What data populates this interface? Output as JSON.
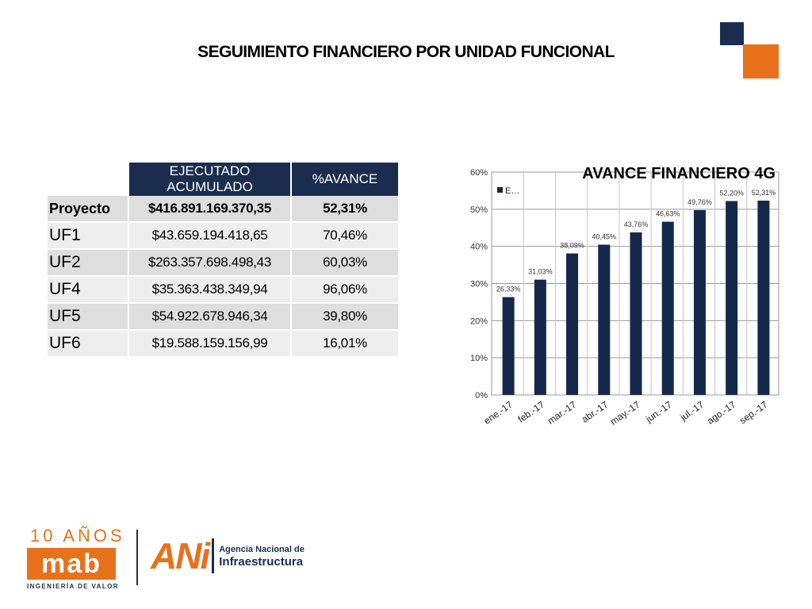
{
  "slide": {
    "title": "SEGUIMIENTO FINANCIERO POR UNIDAD  FUNCIONAL"
  },
  "colors": {
    "navy": "#1b2d4f",
    "orange": "#e8711c",
    "bar": "#14284b"
  },
  "table": {
    "headers": [
      "",
      "EJECUTADO ACUMULADO",
      "%AVANCE"
    ],
    "rows": [
      [
        "Proyecto",
        "$416.891.169.370,35",
        "52,31%"
      ],
      [
        "UF1",
        "$43.659.194.418,65",
        "70,46%"
      ],
      [
        "UF2",
        "$263.357.698.498,43",
        "60,03%"
      ],
      [
        "UF4",
        "$35.363.438.349,94",
        "96,06%"
      ],
      [
        "UF5",
        "$54.922.678.946,34",
        "39,80%"
      ],
      [
        "UF6",
        "$19.588.159.156,99",
        "16,01%"
      ]
    ]
  },
  "chart_data": {
    "type": "bar",
    "title": "AVANCE FINANCIERO 4G",
    "categories": [
      "ene.-17",
      "feb.-17",
      "mar.-17",
      "abr.-17",
      "may.-17",
      "jun.-17",
      "jul.-17",
      "ago.-17",
      "sep.-17"
    ],
    "series": [
      {
        "name": "E…",
        "values": [
          26.33,
          31.03,
          38.09,
          40.45,
          43.76,
          46.63,
          49.76,
          52.2,
          52.31
        ],
        "labels": [
          "26,33%",
          "31,03%",
          "38,09%",
          "40,45%",
          "43,76%",
          "46,63%",
          "49,76%",
          "52,20%",
          "52,31%"
        ]
      }
    ],
    "ylim": [
      0,
      60
    ],
    "yticks": [
      "0%",
      "10%",
      "20%",
      "30%",
      "40%",
      "50%",
      "60%"
    ],
    "grid": true,
    "legend": "top-left"
  },
  "logos": {
    "mab_years": "10 AÑOS",
    "mab_word": "mab",
    "mab_tagline": "INGENIERÍA DE VALOR",
    "ani_word": "ANi",
    "ani_line1": "Agencia Nacional de",
    "ani_line2": "Infraestructura"
  }
}
